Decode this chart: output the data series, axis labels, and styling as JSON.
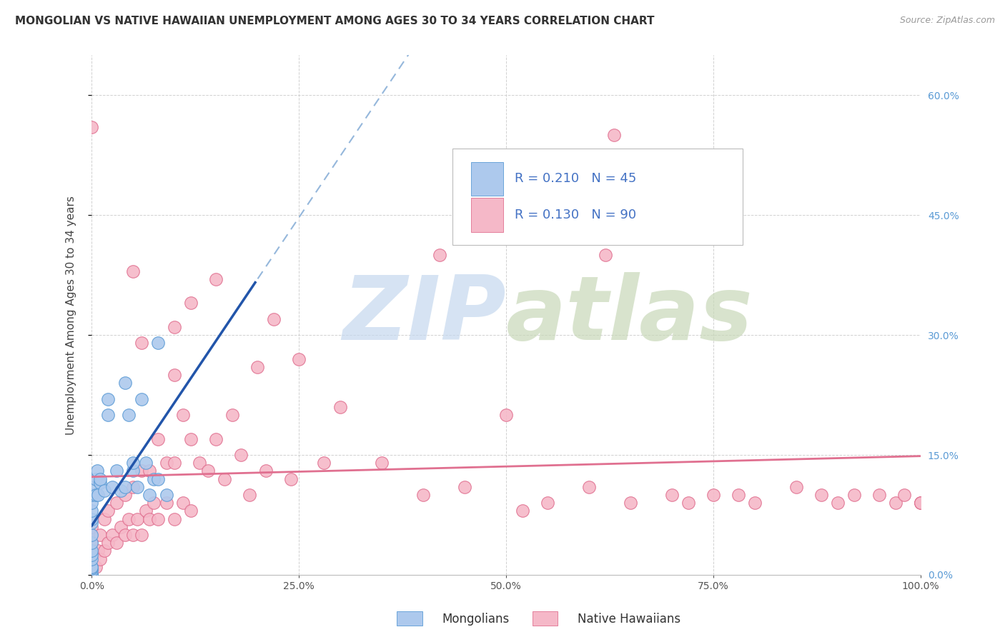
{
  "title": "MONGOLIAN VS NATIVE HAWAIIAN UNEMPLOYMENT AMONG AGES 30 TO 34 YEARS CORRELATION CHART",
  "source": "Source: ZipAtlas.com",
  "ylabel": "Unemployment Among Ages 30 to 34 years",
  "xlim": [
    0,
    1.0
  ],
  "ylim": [
    0,
    0.65
  ],
  "xtick_positions": [
    0.0,
    0.25,
    0.5,
    0.75,
    1.0
  ],
  "xtick_labels": [
    "0.0%",
    "25.0%",
    "50.0%",
    "75.0%",
    "100.0%"
  ],
  "ytick_positions": [
    0.0,
    0.15,
    0.3,
    0.45,
    0.6
  ],
  "ytick_labels_right": [
    "0.0%",
    "15.0%",
    "30.0%",
    "45.0%",
    "60.0%"
  ],
  "mongolian_fill": "#adc9ed",
  "mongolian_edge": "#5b9bd5",
  "hawaiian_fill": "#f5b8c8",
  "hawaiian_edge": "#e07090",
  "regression_mongolian_color": "#8ab0d8",
  "regression_hawaiian_color": "#e07090",
  "regression_blue_solid_color": "#2255aa",
  "R_mongolian": 0.21,
  "N_mongolian": 45,
  "R_hawaiian": 0.13,
  "N_hawaiian": 90,
  "watermark": "ZIPatlas",
  "watermark_color_zip": "#b8cce4",
  "watermark_color_atlas": "#c8d8b0",
  "background_color": "#ffffff",
  "grid_color": "#cccccc",
  "title_fontsize": 11,
  "axis_label_fontsize": 11,
  "tick_fontsize": 10,
  "legend_fontsize": 13,
  "source_fontsize": 9,
  "right_tick_color": "#5b9bd5",
  "legend_text_color": "#333333",
  "legend_value_color": "#4472c4",
  "mongolian_x": [
    0.0,
    0.0,
    0.0,
    0.0,
    0.0,
    0.0,
    0.0,
    0.0,
    0.0,
    0.0,
    0.0,
    0.0,
    0.0,
    0.0,
    0.0,
    0.0,
    0.0,
    0.0,
    0.0,
    0.0,
    0.005,
    0.005,
    0.007,
    0.008,
    0.01,
    0.01,
    0.015,
    0.02,
    0.02,
    0.025,
    0.03,
    0.035,
    0.04,
    0.04,
    0.045,
    0.05,
    0.05,
    0.055,
    0.06,
    0.065,
    0.07,
    0.075,
    0.08,
    0.08,
    0.09
  ],
  "mongolian_y": [
    0.0,
    0.0,
    0.0,
    0.0,
    0.0,
    0.005,
    0.008,
    0.01,
    0.01,
    0.02,
    0.025,
    0.03,
    0.04,
    0.05,
    0.065,
    0.07,
    0.08,
    0.09,
    0.1,
    0.11,
    0.1,
    0.12,
    0.13,
    0.1,
    0.115,
    0.12,
    0.105,
    0.2,
    0.22,
    0.11,
    0.13,
    0.105,
    0.24,
    0.11,
    0.2,
    0.13,
    0.14,
    0.11,
    0.22,
    0.14,
    0.1,
    0.12,
    0.12,
    0.29,
    0.1
  ],
  "hawaiian_x": [
    0.0,
    0.0,
    0.0,
    0.0,
    0.0,
    0.0,
    0.0,
    0.0,
    0.0,
    0.005,
    0.008,
    0.01,
    0.01,
    0.015,
    0.015,
    0.02,
    0.02,
    0.025,
    0.03,
    0.03,
    0.035,
    0.04,
    0.04,
    0.045,
    0.05,
    0.05,
    0.055,
    0.06,
    0.06,
    0.065,
    0.07,
    0.07,
    0.075,
    0.08,
    0.08,
    0.09,
    0.09,
    0.1,
    0.1,
    0.11,
    0.11,
    0.12,
    0.12,
    0.13,
    0.14,
    0.15,
    0.16,
    0.17,
    0.18,
    0.19,
    0.2,
    0.21,
    0.22,
    0.24,
    0.25,
    0.28,
    0.3,
    0.35,
    0.4,
    0.42,
    0.45,
    0.5,
    0.52,
    0.55,
    0.6,
    0.63,
    0.65,
    0.7,
    0.72,
    0.75,
    0.78,
    0.8,
    0.85,
    0.88,
    0.9,
    0.92,
    0.95,
    0.97,
    0.98,
    1.0,
    1.0,
    1.0,
    0.0,
    0.05,
    0.1,
    0.15,
    0.62,
    0.1,
    0.12,
    0.06
  ],
  "hawaiian_y": [
    0.0,
    0.0,
    0.0,
    0.0,
    0.02,
    0.03,
    0.04,
    0.05,
    0.06,
    0.01,
    0.03,
    0.02,
    0.05,
    0.03,
    0.07,
    0.04,
    0.08,
    0.05,
    0.04,
    0.09,
    0.06,
    0.05,
    0.1,
    0.07,
    0.05,
    0.11,
    0.07,
    0.05,
    0.13,
    0.08,
    0.07,
    0.13,
    0.09,
    0.07,
    0.17,
    0.09,
    0.14,
    0.07,
    0.14,
    0.09,
    0.2,
    0.08,
    0.17,
    0.14,
    0.13,
    0.17,
    0.12,
    0.2,
    0.15,
    0.1,
    0.26,
    0.13,
    0.32,
    0.12,
    0.27,
    0.14,
    0.21,
    0.14,
    0.1,
    0.4,
    0.11,
    0.2,
    0.08,
    0.09,
    0.11,
    0.55,
    0.09,
    0.1,
    0.09,
    0.1,
    0.1,
    0.09,
    0.11,
    0.1,
    0.09,
    0.1,
    0.1,
    0.09,
    0.1,
    0.09,
    0.09,
    0.09,
    0.56,
    0.38,
    0.31,
    0.37,
    0.4,
    0.25,
    0.34,
    0.29
  ]
}
